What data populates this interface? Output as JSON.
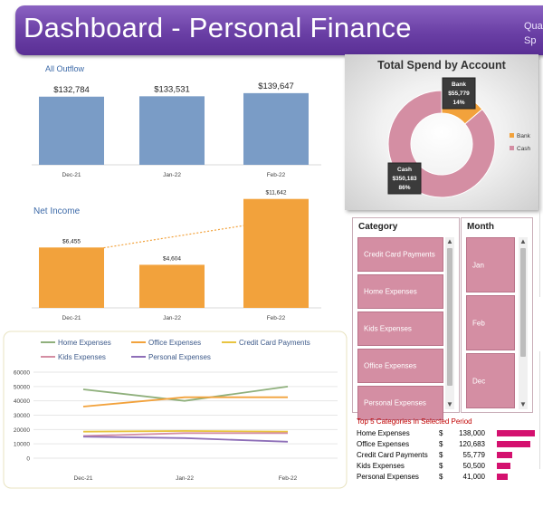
{
  "header": {
    "title": "Dashboard - Personal Finance",
    "side_line1": "Qua",
    "side_line2": "Sp"
  },
  "outflow": {
    "title": "All Outflow",
    "chart_data": {
      "type": "bar",
      "title": "All Outflow",
      "categories": [
        "Dec-21",
        "Jan-22",
        "Feb-22"
      ],
      "values": [
        132784,
        133531,
        139647
      ],
      "labels": [
        "$132,784",
        "$133,531",
        "$139,647"
      ],
      "color": "#7a9cc6",
      "ylim": [
        0,
        150000
      ]
    }
  },
  "net_income": {
    "title": "Net Income",
    "chart_data": {
      "type": "bar",
      "title": "Net Income",
      "categories": [
        "Dec-21",
        "Jan-22",
        "Feb-22"
      ],
      "values": [
        6455,
        4604,
        11642
      ],
      "labels": [
        "$6,455",
        "$4,604",
        "$11,642"
      ],
      "color": "#f2a23c",
      "trendline": true,
      "ylim": [
        0,
        12000
      ]
    }
  },
  "donut": {
    "title": "Total Spend by Account",
    "chart_data": {
      "type": "pie",
      "title": "Total Spend by Account",
      "donut": true,
      "series": [
        {
          "name": "Bank",
          "value": 55779,
          "label_value": "$55,779",
          "pct": "14%",
          "color": "#f2a23c"
        },
        {
          "name": "Cash",
          "value": 350183,
          "label_value": "$350,183",
          "pct": "86%",
          "color": "#d48ea3"
        }
      ],
      "legend": "right"
    }
  },
  "category_slicer": {
    "title": "Category",
    "items": [
      "Credit Card Payments",
      "Home Expenses",
      "Kids Expenses",
      "Office Expenses",
      "Personal Expenses"
    ],
    "scroll_up": "▲",
    "scroll_down": "▼"
  },
  "month_slicer": {
    "title": "Month",
    "items": [
      "Jan",
      "Feb",
      "Dec"
    ],
    "scroll_up": "▲",
    "scroll_down": "▼"
  },
  "top5": {
    "title": "Top 5 Categories in Selected Period",
    "currency": "$",
    "rows": [
      {
        "name": "Home Expenses",
        "amount": "138,000",
        "value": 138000
      },
      {
        "name": "Office Expenses",
        "amount": "120,683",
        "value": 120683
      },
      {
        "name": "Credit Card Payments",
        "amount": "55,779",
        "value": 55779
      },
      {
        "name": "Kids Expenses",
        "amount": "50,500",
        "value": 50500
      },
      {
        "name": "Personal Expenses",
        "amount": "41,000",
        "value": 41000
      }
    ]
  },
  "lines": {
    "chart_data": {
      "type": "line",
      "categories": [
        "Dec-21",
        "Jan-22",
        "Feb-22"
      ],
      "ylim": [
        0,
        60000
      ],
      "yticks": [
        0,
        10000,
        20000,
        30000,
        40000,
        50000,
        60000
      ],
      "ytick_labels": [
        "0",
        "10000",
        "20000",
        "30000",
        "40000",
        "50000",
        "60000"
      ],
      "legend": "top",
      "grid": true,
      "series": [
        {
          "name": "Home Expenses",
          "values": [
            48000,
            40000,
            50000
          ],
          "color": "#8fb07c"
        },
        {
          "name": "Office Expenses",
          "values": [
            36000,
            42500,
            42500
          ],
          "color": "#f2a23c"
        },
        {
          "name": "Credit Card Payments",
          "values": [
            18500,
            19000,
            18500
          ],
          "color": "#e8c440"
        },
        {
          "name": "Kids Expenses",
          "values": [
            15500,
            17500,
            17500
          ],
          "color": "#d48ea3"
        },
        {
          "name": "Personal Expenses",
          "values": [
            15000,
            14000,
            11500
          ],
          "color": "#8e6fb8"
        }
      ]
    }
  }
}
